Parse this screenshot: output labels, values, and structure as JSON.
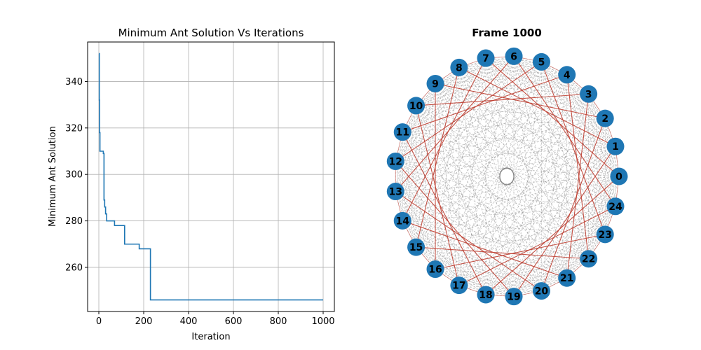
{
  "chart_data": [
    {
      "type": "line",
      "title": "Minimum Ant Solution Vs Iterations",
      "xlabel": "Iteration",
      "ylabel": "Minimum Ant Solution",
      "xlim": [
        -50,
        1050
      ],
      "ylim": [
        241,
        357
      ],
      "xticks": [
        0,
        200,
        400,
        600,
        800,
        1000
      ],
      "yticks": [
        260,
        280,
        300,
        320,
        340
      ],
      "grid": true,
      "line_color": "#1f77b4",
      "series": [
        {
          "step": "post",
          "x": [
            0,
            2,
            3,
            5,
            7,
            20,
            23,
            26,
            30,
            35,
            70,
            115,
            180,
            230,
            1000
          ],
          "y": [
            352,
            332,
            318,
            310,
            310,
            309,
            289,
            286,
            283,
            280,
            278,
            270,
            268,
            246,
            246
          ]
        }
      ]
    },
    {
      "type": "graph",
      "title": "Frame 1000",
      "node_color": "#1f77b4",
      "edge_color": "#808080",
      "path_edge_color": "#c0392b",
      "directed": true,
      "nodes": [
        "0",
        "1",
        "2",
        "3",
        "4",
        "5",
        "6",
        "7",
        "8",
        "9",
        "10",
        "11",
        "12",
        "13",
        "14",
        "15",
        "16",
        "17",
        "18",
        "19",
        "20",
        "21",
        "22",
        "23",
        "24"
      ]
    }
  ]
}
